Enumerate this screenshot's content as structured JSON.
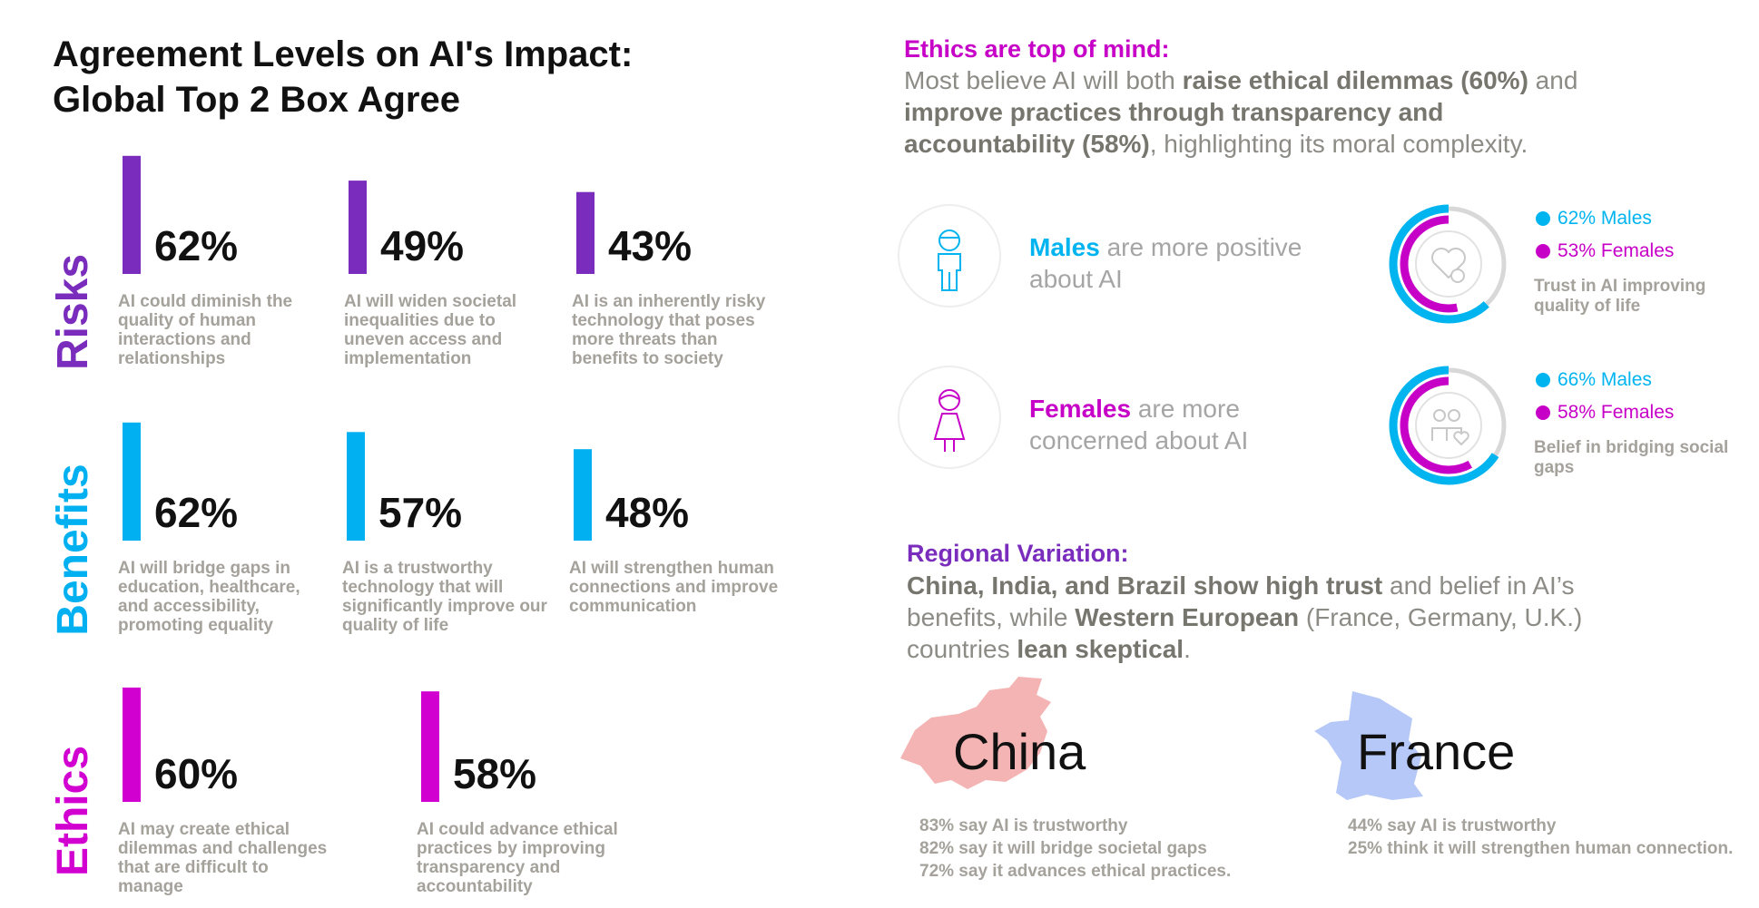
{
  "title": [
    "Agreement Levels on AI's Impact:",
    "Global Top 2 Box Agree"
  ],
  "sections": [
    {
      "name": "Risks",
      "color": "#7a2dbd",
      "items": [
        {
          "value": 62,
          "value_label": "62%",
          "description": "AI could diminish the quality of human interactions and relationships"
        },
        {
          "value": 49,
          "value_label": "49%",
          "description": "AI will widen societal inequalities due to uneven access and implementation"
        },
        {
          "value": 43,
          "value_label": "43%",
          "description": "AI is an inherently risky technology that poses more threats than benefits to society"
        }
      ]
    },
    {
      "name": "Benefits",
      "color": "#00b0f0",
      "items": [
        {
          "value": 62,
          "value_label": "62%",
          "description": "AI will bridge gaps in education, healthcare, and accessibility, promoting equality"
        },
        {
          "value": 57,
          "value_label": "57%",
          "description": "AI is a trustworthy technology that will significantly improve our quality of life"
        },
        {
          "value": 48,
          "value_label": "48%",
          "description": "AI will strengthen human connections and improve communication"
        }
      ]
    },
    {
      "name": "Ethics",
      "color": "#d100d1",
      "items": [
        {
          "value": 60,
          "value_label": "60%",
          "description": "AI may create ethical dilemmas and challenges that are difficult to manage"
        },
        {
          "value": 58,
          "value_label": "58%",
          "description": "AI could advance ethical practices by improving transparency and accountability"
        }
      ]
    }
  ],
  "ethics_note": {
    "heading": "Ethics are top of mind:",
    "text": [
      {
        "text": "Most believe AI will both "
      },
      {
        "text": "raise ethical dilemmas (60%)",
        "bold": true
      },
      {
        "text": " and "
      },
      {
        "text": "improve practices through transparency and accountability (58%)",
        "bold": true
      },
      {
        "text": ", highlighting its moral complexity."
      }
    ]
  },
  "gender": [
    {
      "label": "Males",
      "color": "#00b4f0",
      "text": " are more positive about AI"
    },
    {
      "label": "Females",
      "color": "#c700c7",
      "text": " are more concerned about AI"
    }
  ],
  "rings": [
    {
      "description": "Trust in AI improving quality of life",
      "series": [
        {
          "value": 62,
          "label": "62% Males",
          "color": "#00b4f0"
        },
        {
          "value": 53,
          "label": "53% Females",
          "color": "#c700c7"
        }
      ]
    },
    {
      "description": "Belief in bridging social gaps",
      "series": [
        {
          "value": 66,
          "label": "66% Males",
          "color": "#00b4f0"
        },
        {
          "value": 58,
          "label": "58% Females",
          "color": "#c700c7"
        }
      ]
    }
  ],
  "regional": {
    "heading": "Regional Variation:",
    "text": [
      {
        "text": "China, India, and Brazil show high trust",
        "bold": true
      },
      {
        "text": " and belief in AI’s benefits, while "
      },
      {
        "text": "Western European",
        "bold": true
      },
      {
        "text": " (France, Germany, U.K.) countries "
      },
      {
        "text": "lean skeptical",
        "bold": true
      },
      {
        "text": "."
      }
    ],
    "countries": [
      {
        "name": "China",
        "color": "#f4b4b4",
        "stats": [
          "83% say AI is trustworthy",
          "82% say it will bridge societal gaps",
          "72% say it advances ethical practices."
        ]
      },
      {
        "name": "France",
        "color": "#b5c8f7",
        "stats": [
          "44% say AI is trustworthy",
          "25% think it will strengthen human connection."
        ]
      }
    ]
  }
}
